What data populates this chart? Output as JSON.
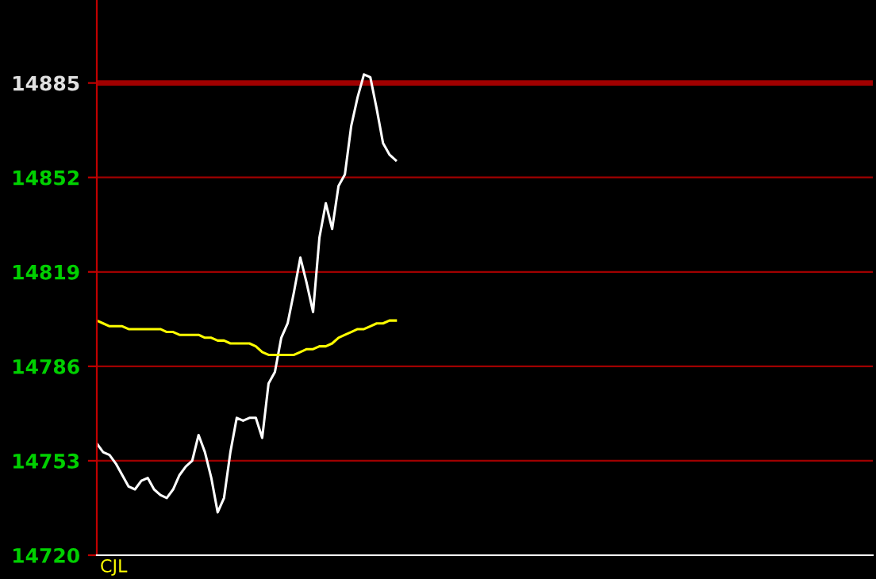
{
  "chart_data": {
    "type": "line",
    "categories": [
      null,
      null,
      null,
      null,
      null,
      null,
      null,
      null,
      null,
      null,
      null,
      null,
      null,
      null,
      null,
      null,
      null,
      null,
      null,
      null,
      null,
      null,
      null,
      null,
      null,
      null,
      null,
      null,
      null,
      null,
      null,
      null,
      null,
      null,
      null,
      null,
      null,
      null,
      null,
      null,
      null,
      null,
      null,
      null,
      null,
      null,
      null,
      null,
      null,
      null,
      null,
      null,
      null,
      null,
      null,
      null,
      null,
      null,
      null,
      null,
      null,
      null,
      null,
      null,
      null,
      null,
      null,
      null,
      null,
      null,
      null,
      null,
      null,
      null,
      null,
      null,
      null,
      null,
      null,
      null,
      null,
      null,
      null,
      null,
      null,
      null,
      null,
      null,
      null,
      null,
      null,
      null,
      null,
      null,
      null,
      null,
      null,
      null,
      null,
      null,
      null,
      null,
      null,
      null,
      null,
      null,
      null,
      null,
      null,
      null,
      null,
      null,
      null,
      null,
      null,
      null,
      null,
      null,
      null,
      null,
      null,
      null,
      null
    ],
    "series": [
      {
        "color": "#ffffff",
        "values": [
          14759,
          14756,
          14755,
          14752,
          14748,
          14744,
          14743,
          14746,
          14747,
          14743,
          14741,
          14740,
          14743,
          14748,
          14751,
          14753,
          14762,
          14756,
          14747,
          14735,
          14740,
          14756,
          14768,
          14767,
          14768,
          14768,
          14761,
          14780,
          14784,
          14796,
          14801,
          14812,
          14824,
          14815,
          14805,
          14831,
          14843,
          14834,
          14849,
          14853,
          14870,
          14880,
          14888,
          14887,
          14876,
          14864,
          14860,
          14858,
          null,
          null,
          null,
          null,
          null,
          null,
          null,
          null,
          null,
          null,
          null,
          null,
          null,
          null,
          null,
          null,
          null,
          null,
          null,
          null,
          null,
          null,
          null,
          null,
          null,
          null,
          null,
          null,
          null,
          null,
          null,
          null,
          null,
          null,
          null,
          null,
          null,
          null,
          null,
          null,
          null,
          null,
          null,
          null,
          null,
          null,
          null,
          null,
          null,
          null,
          null,
          null,
          null,
          null,
          null,
          null,
          null,
          null,
          null,
          null,
          null,
          null,
          null,
          null,
          null,
          null,
          null,
          null,
          null,
          null,
          null,
          null,
          null,
          null,
          null
        ]
      },
      {
        "color": "#ffff00",
        "values": [
          14802,
          14801,
          14800,
          14800,
          14800,
          14799,
          14799,
          14799,
          14799,
          14799,
          14799,
          14798,
          14798,
          14797,
          14797,
          14797,
          14797,
          14796,
          14796,
          14795,
          14795,
          14794,
          14794,
          14794,
          14794,
          14793,
          14791,
          14790,
          14790,
          14790,
          14790,
          14790,
          14791,
          14792,
          14792,
          14793,
          14793,
          14794,
          14796,
          14797,
          14798,
          14799,
          14799,
          14800,
          14801,
          14801,
          14802,
          14802,
          null,
          null,
          null,
          null,
          null,
          null,
          null,
          null,
          null,
          null,
          null,
          null,
          null,
          null,
          null,
          null,
          null,
          null,
          null,
          null,
          null,
          null,
          null,
          null,
          null,
          null,
          null,
          null,
          null,
          null,
          null,
          null,
          null,
          null,
          null,
          null,
          null,
          null,
          null,
          null,
          null,
          null,
          null,
          null,
          null,
          null,
          null,
          null,
          null,
          null,
          null,
          null,
          null,
          null,
          null,
          null,
          null,
          null,
          null,
          null,
          null,
          null,
          null,
          null,
          null,
          null,
          null,
          null,
          null,
          null,
          null,
          null,
          null,
          null,
          null
        ]
      }
    ],
    "ylim": [
      14720,
      14914
    ],
    "yticks": [
      14720,
      14753,
      14786,
      14819,
      14852,
      14885
    ],
    "grid": "y",
    "ref_lines": [
      {
        "axis": "y",
        "value": 14885,
        "color": "#a00000"
      }
    ],
    "annotations": [
      "CJL"
    ]
  }
}
